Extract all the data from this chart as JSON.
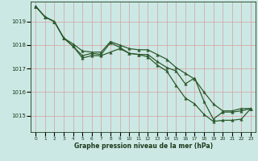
{
  "title": "Graphe pression niveau de la mer (hPa)",
  "bg_color": "#cce8e4",
  "grid_color": "#d4a0a0",
  "line_color": "#2d5a2d",
  "marker": "^",
  "markersize": 2.5,
  "linewidth": 0.9,
  "label_color": "#1a3a1a",
  "ylim": [
    1014.3,
    1019.85
  ],
  "yticks": [
    1015,
    1016,
    1017,
    1018,
    1019
  ],
  "xlim": [
    -0.5,
    23.5
  ],
  "xticks": [
    0,
    1,
    2,
    3,
    4,
    5,
    6,
    7,
    8,
    9,
    10,
    11,
    12,
    13,
    14,
    15,
    16,
    17,
    18,
    19,
    20,
    21,
    22,
    23
  ],
  "line1": [
    1019.65,
    1019.2,
    1019.0,
    1018.3,
    1017.95,
    1017.55,
    1017.65,
    1017.6,
    1018.1,
    1017.9,
    1017.65,
    1017.6,
    1017.6,
    1017.3,
    1017.05,
    1016.9,
    1016.35,
    1016.6,
    1015.6,
    1014.85,
    1015.15,
    1015.15,
    1015.2,
    1015.3
  ],
  "line2": [
    1019.65,
    1019.2,
    1019.0,
    1018.3,
    1017.95,
    1017.45,
    1017.55,
    1017.55,
    1017.7,
    1017.85,
    1017.65,
    1017.6,
    1017.5,
    1017.15,
    1016.9,
    1016.3,
    1015.75,
    1015.5,
    1015.05,
    1014.75,
    1014.8,
    1014.8,
    1014.85,
    1015.3
  ],
  "line3": [
    1019.65,
    1019.2,
    1019.0,
    1018.3,
    1018.05,
    1017.75,
    1017.7,
    1017.7,
    1018.15,
    1018.0,
    1017.85,
    1017.8,
    1017.8,
    1017.6,
    1017.4,
    1017.05,
    1016.8,
    1016.55,
    1016.0,
    1015.5,
    1015.2,
    1015.2,
    1015.3,
    1015.3
  ]
}
